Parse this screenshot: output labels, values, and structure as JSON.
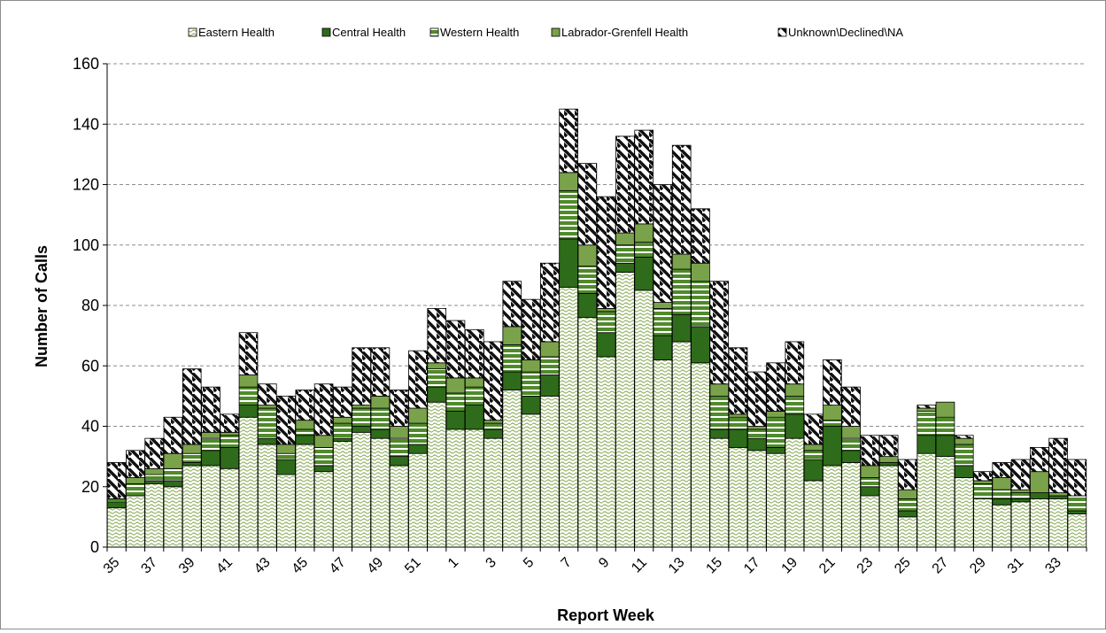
{
  "chart_data": {
    "type": "bar",
    "stacked": true,
    "title": "",
    "xlabel": "Report Week",
    "ylabel": "Number of Calls",
    "ylim": [
      0,
      160
    ],
    "yticks": [
      0,
      20,
      40,
      60,
      80,
      100,
      120,
      140,
      160
    ],
    "grid": true,
    "legend_position": "top",
    "categories": [
      "35",
      "36",
      "37",
      "38",
      "39",
      "40",
      "41",
      "42",
      "43",
      "44",
      "45",
      "46",
      "47",
      "48",
      "49",
      "50",
      "51",
      "52",
      "1",
      "2",
      "3",
      "4",
      "5",
      "6",
      "7",
      "8",
      "9",
      "10",
      "11",
      "12",
      "13",
      "14",
      "15",
      "16",
      "17",
      "18",
      "19",
      "20",
      "21",
      "22",
      "23",
      "24",
      "25",
      "26",
      "27",
      "28",
      "29",
      "30",
      "31",
      "32",
      "33",
      "34"
    ],
    "tick_labels": [
      "35",
      "37",
      "39",
      "41",
      "43",
      "45",
      "47",
      "49",
      "51",
      "1",
      "3",
      "5",
      "7",
      "9",
      "11",
      "13",
      "15",
      "17",
      "19",
      "21",
      "23",
      "25",
      "27",
      "29",
      "31",
      "33"
    ],
    "series": [
      {
        "name": "Eastern Health",
        "color": "#7a9a4a",
        "values": [
          13,
          17,
          21,
          20,
          27,
          27,
          26,
          43,
          34,
          24,
          34,
          25,
          35,
          38,
          36,
          27,
          31,
          48,
          39,
          39,
          36,
          52,
          44,
          50,
          86,
          76,
          63,
          91,
          85,
          62,
          68,
          61,
          36,
          33,
          32,
          31,
          36,
          22,
          27,
          28,
          17,
          27,
          10,
          31,
          30,
          23,
          16,
          14,
          15,
          16,
          16,
          11
        ]
      },
      {
        "name": "Central Health",
        "color": "#2e6b1a",
        "values": [
          2,
          0,
          1,
          2,
          1,
          5,
          7,
          4,
          2,
          5,
          3,
          2,
          1,
          2,
          3,
          3,
          3,
          5,
          6,
          8,
          3,
          6,
          6,
          7,
          16,
          8,
          8,
          3,
          11,
          8,
          9,
          12,
          3,
          6,
          4,
          2,
          8,
          7,
          13,
          4,
          3,
          1,
          2,
          6,
          7,
          4,
          0,
          2,
          1,
          2,
          1,
          1
        ]
      },
      {
        "name": "Western Health",
        "color": "#4f8a2b",
        "values": [
          1,
          4,
          2,
          4,
          3,
          4,
          4,
          6,
          10,
          2,
          2,
          6,
          5,
          6,
          7,
          6,
          7,
          6,
          6,
          6,
          2,
          9,
          8,
          6,
          16,
          9,
          7,
          6,
          5,
          9,
          15,
          15,
          11,
          4,
          3,
          10,
          6,
          3,
          2,
          4,
          3,
          0,
          4,
          8,
          6,
          7,
          5,
          3,
          2,
          0,
          0,
          5
        ]
      },
      {
        "name": "Labrador-Grenfell Health",
        "color": "#6f9a3f",
        "values": [
          0,
          2,
          2,
          5,
          3,
          2,
          1,
          4,
          1,
          3,
          3,
          4,
          2,
          1,
          4,
          4,
          5,
          2,
          5,
          3,
          1,
          6,
          4,
          5,
          6,
          7,
          1,
          4,
          6,
          2,
          5,
          6,
          4,
          1,
          1,
          2,
          4,
          2,
          5,
          4,
          4,
          2,
          3,
          1,
          5,
          2,
          1,
          4,
          1,
          7,
          1,
          0
        ]
      },
      {
        "name": "Unknown\\Declined\\NA",
        "color": "#1a1a1a",
        "values": [
          12,
          9,
          10,
          12,
          25,
          15,
          6,
          14,
          7,
          16,
          10,
          17,
          10,
          19,
          16,
          12,
          19,
          18,
          19,
          16,
          26,
          15,
          20,
          26,
          21,
          27,
          37,
          32,
          31,
          39,
          36,
          18,
          34,
          22,
          18,
          16,
          14,
          10,
          15,
          13,
          10,
          7,
          10,
          1,
          0,
          1,
          3,
          5,
          10,
          8,
          18,
          12
        ]
      }
    ]
  }
}
